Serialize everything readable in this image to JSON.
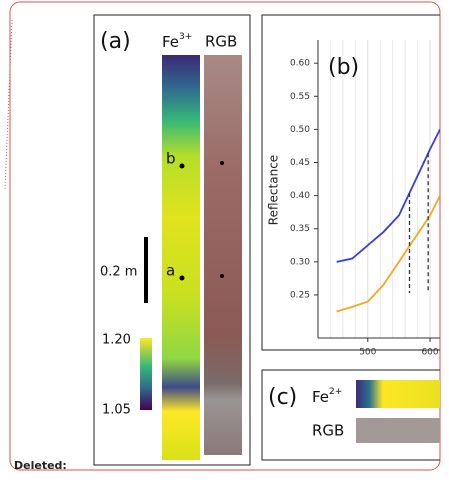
{
  "deleted_label": "Deleted:",
  "figure": {
    "panel_a": {
      "label": "(a)",
      "fe_header": {
        "base": "Fe",
        "sup": "3+"
      },
      "rgb_header": "RGB",
      "point_labels": [
        "b",
        "a"
      ],
      "scale_bar_label": "0.2 m",
      "colorbar_ticks": [
        {
          "value": 1.2,
          "label": "1.20"
        },
        1.05
      ]
    },
    "panel_b": {
      "label": "(b)",
      "chart_data": {
        "type": "line",
        "ylabel": "Reflectance",
        "x": [
          450,
          475,
          500,
          525,
          550,
          575,
          600,
          616
        ],
        "series": [
          {
            "color": "#3a3ae0",
            "values": [
              0.3,
              0.305,
              0.325,
              0.345,
              0.37,
              0.42,
              0.47,
              0.5
            ]
          },
          {
            "color": "#f5a623",
            "values": [
              0.225,
              0.232,
              0.24,
              0.265,
              0.3,
              0.335,
              0.37,
              0.4
            ]
          }
        ],
        "xlim": [
          420,
          616
        ],
        "ylim": [
          0.185,
          0.635
        ],
        "xticks": [
          500,
          600
        ],
        "yticks": [
          0.25,
          {
            "value": 0.3,
            "label": "0.30"
          },
          0.35,
          {
            "value": 0.4,
            "label": "0.40"
          },
          0.45,
          {
            "value": 0.5,
            "label": "0.50"
          },
          0.55,
          {
            "value": 0.6,
            "label": "0.60"
          }
        ],
        "dashed_x": [
          567,
          597
        ],
        "grid": true
      }
    },
    "panel_c": {
      "label": "(c)",
      "fe_header": {
        "base": "Fe",
        "sup": "2+"
      },
      "rgb_header": "RGB"
    }
  }
}
